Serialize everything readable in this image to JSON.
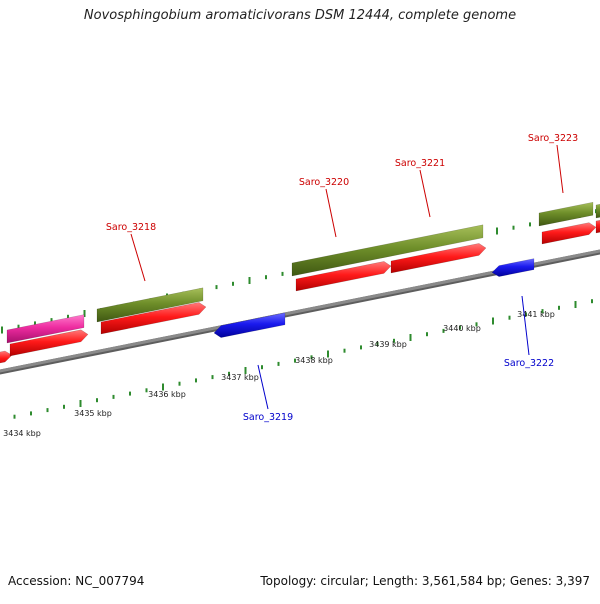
{
  "title": "Novosphingobium aromaticivorans DSM 12444, complete genome",
  "footer": {
    "accession": "Accession: NC_007794",
    "summary": "Topology: circular; Length: 3,561,584 bp; Genes: 3,397"
  },
  "colors": {
    "background": "#ffffff",
    "backbone": "#8a8a8a",
    "tick": "#2e8b2e",
    "cds_forward": "#ff1a1a",
    "cds_reverse": "#1a1aee",
    "gene_olive": "#6f8f2a",
    "gene_pink": "#ee2ca0",
    "label_forward": "#cc0000",
    "label_reverse": "#0000cc"
  },
  "scale": {
    "unit": "kbp",
    "labels": [
      "3434 kbp",
      "3435 kbp",
      "3436 kbp",
      "3437 kbp",
      "3438 kbp",
      "3439 kbp",
      "3440 kbp",
      "3441 kbp"
    ]
  },
  "genes": [
    {
      "name": "Saro_3218",
      "strand": "forward",
      "feature": "olive"
    },
    {
      "name": "Saro_3219",
      "strand": "reverse",
      "feature": "blue"
    },
    {
      "name": "Saro_3220",
      "strand": "forward",
      "feature": "olive"
    },
    {
      "name": "Saro_3221",
      "strand": "forward",
      "feature": "olive"
    },
    {
      "name": "Saro_3222",
      "strand": "reverse",
      "feature": "blue"
    },
    {
      "name": "Saro_3223",
      "strand": "forward",
      "feature": "olive"
    }
  ]
}
